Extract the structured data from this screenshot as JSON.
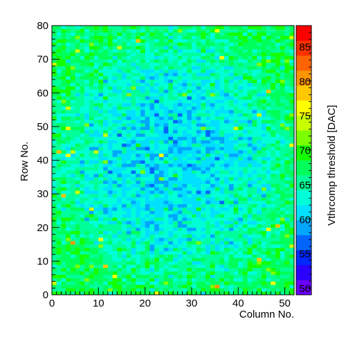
{
  "chart_data": {
    "type": "heatmap",
    "title": "",
    "xlabel": "Column No.",
    "ylabel": "Row No.",
    "zlabel": "Vthrcomp threshold [DAC]",
    "xlim": [
      0,
      52
    ],
    "ylim": [
      0,
      80
    ],
    "zlim": [
      49,
      88
    ],
    "n_columns": 52,
    "n_rows": 80,
    "x_ticks": [
      "0",
      "10",
      "20",
      "30",
      "40",
      "50"
    ],
    "y_ticks": [
      "0",
      "10",
      "20",
      "30",
      "40",
      "50",
      "60",
      "70",
      "80"
    ],
    "z_ticks": [
      "50",
      "55",
      "60",
      "65",
      "70",
      "75",
      "80",
      "85"
    ],
    "value_distribution": {
      "center_mean": 61,
      "edge_mean": 67,
      "spread": 3.5
    },
    "palette": [
      "#6a00ff",
      "#2b00ff",
      "#0028ff",
      "#0066ff",
      "#00a6ff",
      "#00e0ff",
      "#00ffd8",
      "#00ff9a",
      "#00ff5a",
      "#14ff00",
      "#7cff00",
      "#c8ff00",
      "#ffff00",
      "#ffc800",
      "#ff9600",
      "#ff6400",
      "#ff3200",
      "#ff0000"
    ]
  }
}
